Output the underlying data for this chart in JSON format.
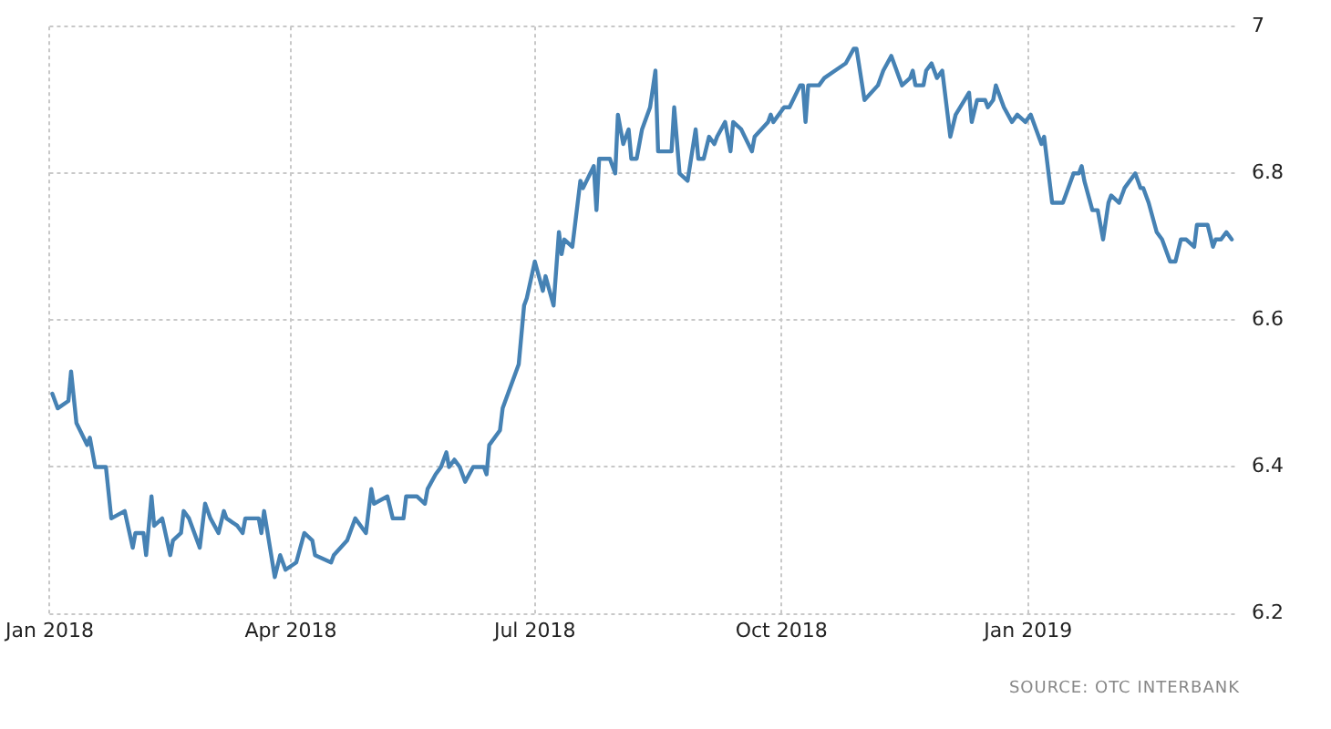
{
  "chart_data": {
    "type": "line",
    "x": [
      "2018-01-02",
      "2018-01-04",
      "2018-01-08",
      "2018-01-09",
      "2018-01-11",
      "2018-01-15",
      "2018-01-16",
      "2018-01-18",
      "2018-01-22",
      "2018-01-24",
      "2018-01-29",
      "2018-02-01",
      "2018-02-02",
      "2018-02-05",
      "2018-02-06",
      "2018-02-08",
      "2018-02-09",
      "2018-02-12",
      "2018-02-15",
      "2018-02-16",
      "2018-02-19",
      "2018-02-20",
      "2018-02-22",
      "2018-02-26",
      "2018-02-28",
      "2018-03-02",
      "2018-03-05",
      "2018-03-07",
      "2018-03-08",
      "2018-03-12",
      "2018-03-14",
      "2018-03-15",
      "2018-03-20",
      "2018-03-21",
      "2018-03-22",
      "2018-03-26",
      "2018-03-28",
      "2018-03-30",
      "2018-04-03",
      "2018-04-06",
      "2018-04-09",
      "2018-04-10",
      "2018-04-16",
      "2018-04-17",
      "2018-04-22",
      "2018-04-25",
      "2018-04-29",
      "2018-05-01",
      "2018-05-02",
      "2018-05-07",
      "2018-05-09",
      "2018-05-13",
      "2018-05-14",
      "2018-05-18",
      "2018-05-21",
      "2018-05-22",
      "2018-05-25",
      "2018-05-27",
      "2018-05-29",
      "2018-05-30",
      "2018-06-01",
      "2018-06-03",
      "2018-06-05",
      "2018-06-08",
      "2018-06-12",
      "2018-06-13",
      "2018-06-14",
      "2018-06-18",
      "2018-06-19",
      "2018-06-25",
      "2018-06-27",
      "2018-06-28",
      "2018-07-01",
      "2018-07-04",
      "2018-07-05",
      "2018-07-08",
      "2018-07-10",
      "2018-07-11",
      "2018-07-12",
      "2018-07-15",
      "2018-07-18",
      "2018-07-19",
      "2018-07-23",
      "2018-07-24",
      "2018-07-25",
      "2018-07-29",
      "2018-07-31",
      "2018-08-01",
      "2018-08-03",
      "2018-08-05",
      "2018-08-06",
      "2018-08-08",
      "2018-08-10",
      "2018-08-13",
      "2018-08-15",
      "2018-08-16",
      "2018-08-20",
      "2018-08-21",
      "2018-08-22",
      "2018-08-24",
      "2018-08-27",
      "2018-08-30",
      "2018-08-31",
      "2018-09-02",
      "2018-09-04",
      "2018-09-06",
      "2018-09-07",
      "2018-09-10",
      "2018-09-12",
      "2018-09-13",
      "2018-09-16",
      "2018-09-20",
      "2018-09-21",
      "2018-09-26",
      "2018-09-27",
      "2018-09-28",
      "2018-10-02",
      "2018-10-04",
      "2018-10-08",
      "2018-10-09",
      "2018-10-10",
      "2018-10-11",
      "2018-10-15",
      "2018-10-17",
      "2018-10-21",
      "2018-10-25",
      "2018-10-28",
      "2018-10-29",
      "2018-11-01",
      "2018-11-06",
      "2018-11-08",
      "2018-11-11",
      "2018-11-15",
      "2018-11-18",
      "2018-11-19",
      "2018-11-20",
      "2018-11-23",
      "2018-11-24",
      "2018-11-26",
      "2018-11-28",
      "2018-11-30",
      "2018-12-03",
      "2018-12-05",
      "2018-12-10",
      "2018-12-11",
      "2018-12-13",
      "2018-12-16",
      "2018-12-17",
      "2018-12-19",
      "2018-12-20",
      "2018-12-23",
      "2018-12-26",
      "2018-12-28",
      "2018-12-31",
      "2019-01-02",
      "2019-01-04",
      "2019-01-06",
      "2019-01-07",
      "2019-01-10",
      "2019-01-14",
      "2019-01-15",
      "2019-01-18",
      "2019-01-20",
      "2019-01-21",
      "2019-01-22",
      "2019-01-25",
      "2019-01-27",
      "2019-01-29",
      "2019-01-31",
      "2019-02-01",
      "2019-02-04",
      "2019-02-06",
      "2019-02-10",
      "2019-02-12",
      "2019-02-13",
      "2019-02-15",
      "2019-02-18",
      "2019-02-20",
      "2019-02-23",
      "2019-02-25",
      "2019-02-27",
      "2019-03-01",
      "2019-03-04",
      "2019-03-05",
      "2019-03-09",
      "2019-03-11",
      "2019-03-12",
      "2019-03-14",
      "2019-03-16",
      "2019-03-18"
    ],
    "values": [
      6.5,
      6.48,
      6.49,
      6.53,
      6.46,
      6.43,
      6.44,
      6.4,
      6.4,
      6.33,
      6.34,
      6.29,
      6.31,
      6.31,
      6.28,
      6.36,
      6.32,
      6.33,
      6.28,
      6.3,
      6.31,
      6.34,
      6.33,
      6.29,
      6.35,
      6.33,
      6.31,
      6.34,
      6.33,
      6.32,
      6.31,
      6.33,
      6.33,
      6.31,
      6.34,
      6.25,
      6.28,
      6.26,
      6.27,
      6.31,
      6.3,
      6.28,
      6.27,
      6.28,
      6.3,
      6.33,
      6.31,
      6.37,
      6.35,
      6.36,
      6.33,
      6.33,
      6.36,
      6.36,
      6.35,
      6.37,
      6.39,
      6.4,
      6.42,
      6.4,
      6.41,
      6.4,
      6.38,
      6.4,
      6.4,
      6.39,
      6.43,
      6.45,
      6.48,
      6.54,
      6.62,
      6.63,
      6.68,
      6.64,
      6.66,
      6.62,
      6.72,
      6.69,
      6.71,
      6.7,
      6.79,
      6.78,
      6.81,
      6.75,
      6.82,
      6.82,
      6.8,
      6.88,
      6.84,
      6.86,
      6.82,
      6.82,
      6.86,
      6.89,
      6.94,
      6.83,
      6.83,
      6.83,
      6.89,
      6.8,
      6.79,
      6.86,
      6.82,
      6.82,
      6.85,
      6.84,
      6.85,
      6.87,
      6.83,
      6.87,
      6.86,
      6.83,
      6.85,
      6.87,
      6.88,
      6.87,
      6.89,
      6.89,
      6.92,
      6.92,
      6.87,
      6.92,
      6.92,
      6.93,
      6.94,
      6.95,
      6.97,
      6.97,
      6.9,
      6.92,
      6.94,
      6.96,
      6.92,
      6.93,
      6.94,
      6.92,
      6.92,
      6.94,
      6.95,
      6.93,
      6.94,
      6.85,
      6.88,
      6.91,
      6.87,
      6.9,
      6.9,
      6.89,
      6.9,
      6.92,
      6.89,
      6.87,
      6.88,
      6.87,
      6.88,
      6.86,
      6.84,
      6.85,
      6.76,
      6.76,
      6.77,
      6.8,
      6.8,
      6.81,
      6.79,
      6.75,
      6.75,
      6.71,
      6.76,
      6.77,
      6.76,
      6.78,
      6.8,
      6.78,
      6.78,
      6.76,
      6.72,
      6.71,
      6.68,
      6.68,
      6.71,
      6.71,
      6.7,
      6.73,
      6.73,
      6.7,
      6.71,
      6.71,
      6.72,
      6.71
    ],
    "color": "#4682b4",
    "xlim": [
      "2018-01-01",
      "2019-03-20"
    ],
    "xticks": [
      {
        "value": "2018-01-01",
        "label": "Jan 2018"
      },
      {
        "value": "2018-04-01",
        "label": "Apr 2018"
      },
      {
        "value": "2018-07-01",
        "label": "Jul 2018"
      },
      {
        "value": "2018-10-01",
        "label": "Oct 2018"
      },
      {
        "value": "2019-01-01",
        "label": "Jan 2019"
      }
    ],
    "ylim": [
      6.2,
      7
    ],
    "yticks": [
      6.2,
      6.4,
      6.6,
      6.8,
      7
    ],
    "grid": true,
    "marker": "none",
    "line_style": "solid",
    "annotations": [
      "SOURCE: OTC INTERBANK"
    ]
  }
}
